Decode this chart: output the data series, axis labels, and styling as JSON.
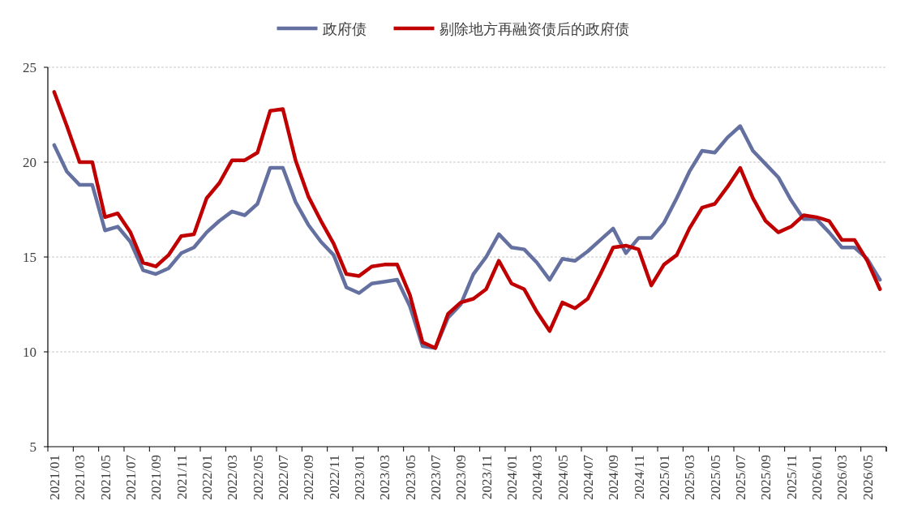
{
  "chart_data": {
    "type": "line",
    "categories": [
      "2021/01",
      null,
      "2021/03",
      null,
      "2021/05",
      null,
      "2021/07",
      null,
      "2021/09",
      null,
      "2021/11",
      null,
      "2022/01",
      null,
      "2022/03",
      null,
      "2022/05",
      null,
      "2022/07",
      null,
      "2022/09",
      null,
      "2022/11",
      null,
      "2023/01",
      null,
      "2023/03",
      null,
      "2023/05",
      null,
      "2023/07",
      null,
      "2023/09",
      null,
      "2023/11",
      null,
      "2024/01",
      null,
      "2024/03",
      null,
      "2024/05",
      null,
      "2024/07",
      null,
      "2024/09",
      null,
      "2024/11",
      null,
      "2025/01",
      null,
      "2025/03",
      null,
      "2025/05",
      null,
      "2025/07",
      null,
      "2025/09",
      null,
      "2025/11",
      null,
      "2026/01",
      null,
      "2026/03",
      null,
      "2026/05",
      null
    ],
    "series": [
      {
        "name": "政府债",
        "color": "#6470a0",
        "values": [
          20.9,
          19.5,
          18.8,
          18.8,
          16.4,
          16.6,
          15.8,
          14.3,
          14.1,
          14.4,
          15.2,
          15.5,
          16.3,
          16.9,
          17.4,
          17.2,
          17.8,
          19.7,
          19.7,
          17.9,
          16.7,
          15.8,
          15.1,
          13.4,
          13.1,
          13.6,
          13.7,
          13.8,
          12.4,
          10.3,
          10.2,
          11.8,
          12.5,
          14.1,
          15.0,
          16.2,
          15.5,
          15.4,
          14.7,
          13.8,
          14.9,
          14.8,
          15.3,
          15.9,
          16.5,
          15.2,
          16.0,
          16.0,
          16.8,
          18.1,
          19.5,
          20.6,
          20.5,
          21.3,
          21.9,
          20.6,
          19.9,
          19.2,
          18.0,
          17.0,
          17.0,
          16.3,
          15.5,
          15.5,
          14.9,
          13.8
        ]
      },
      {
        "name": "剔除地方再融资债后的政府债",
        "color": "#c00000",
        "values": [
          23.7,
          21.9,
          20.0,
          20.0,
          17.1,
          17.3,
          16.3,
          14.7,
          14.5,
          15.1,
          16.1,
          16.2,
          18.1,
          18.9,
          20.1,
          20.1,
          20.5,
          22.7,
          22.8,
          20.1,
          18.2,
          16.9,
          15.7,
          14.1,
          14.0,
          14.5,
          14.6,
          14.6,
          13.0,
          10.5,
          10.2,
          12.0,
          12.6,
          12.8,
          13.3,
          14.8,
          13.6,
          13.3,
          12.1,
          11.1,
          12.6,
          12.3,
          12.8,
          14.1,
          15.5,
          15.6,
          15.4,
          13.5,
          14.6,
          15.1,
          16.5,
          17.6,
          17.8,
          18.7,
          19.7,
          18.1,
          16.9,
          16.3,
          16.6,
          17.2,
          17.1,
          16.9,
          15.9,
          15.9,
          14.8,
          13.3
        ]
      }
    ],
    "ylim": [
      5,
      25
    ],
    "yticks": [
      5,
      10,
      15,
      20,
      25
    ],
    "grid": "y",
    "legend": "top"
  }
}
